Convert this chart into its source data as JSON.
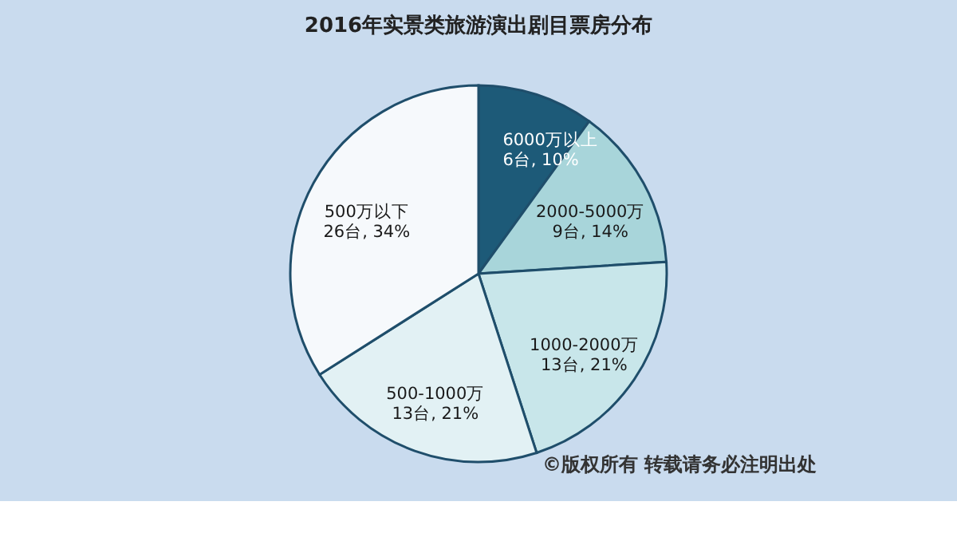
{
  "chart_data": {
    "type": "pie",
    "title": "2016年实景类旅游演出剧目票房分布",
    "categories": [
      "6000万以上",
      "2000-5000万",
      "1000-2000万",
      "500-1000万",
      "500万以下"
    ],
    "values": [
      10,
      14,
      21,
      21,
      34
    ],
    "value_labels": [
      "6台, 10%",
      "9台, 14%",
      "13台, 21%",
      "13台, 21%",
      "26台, 34%"
    ],
    "colors": [
      "#1d5a78",
      "#a8d5da",
      "#c8e6ea",
      "#e2f1f4",
      "#f6f9fc"
    ],
    "legend": false,
    "annotations": [
      "©版权所有    转载请务必注明出处"
    ]
  }
}
